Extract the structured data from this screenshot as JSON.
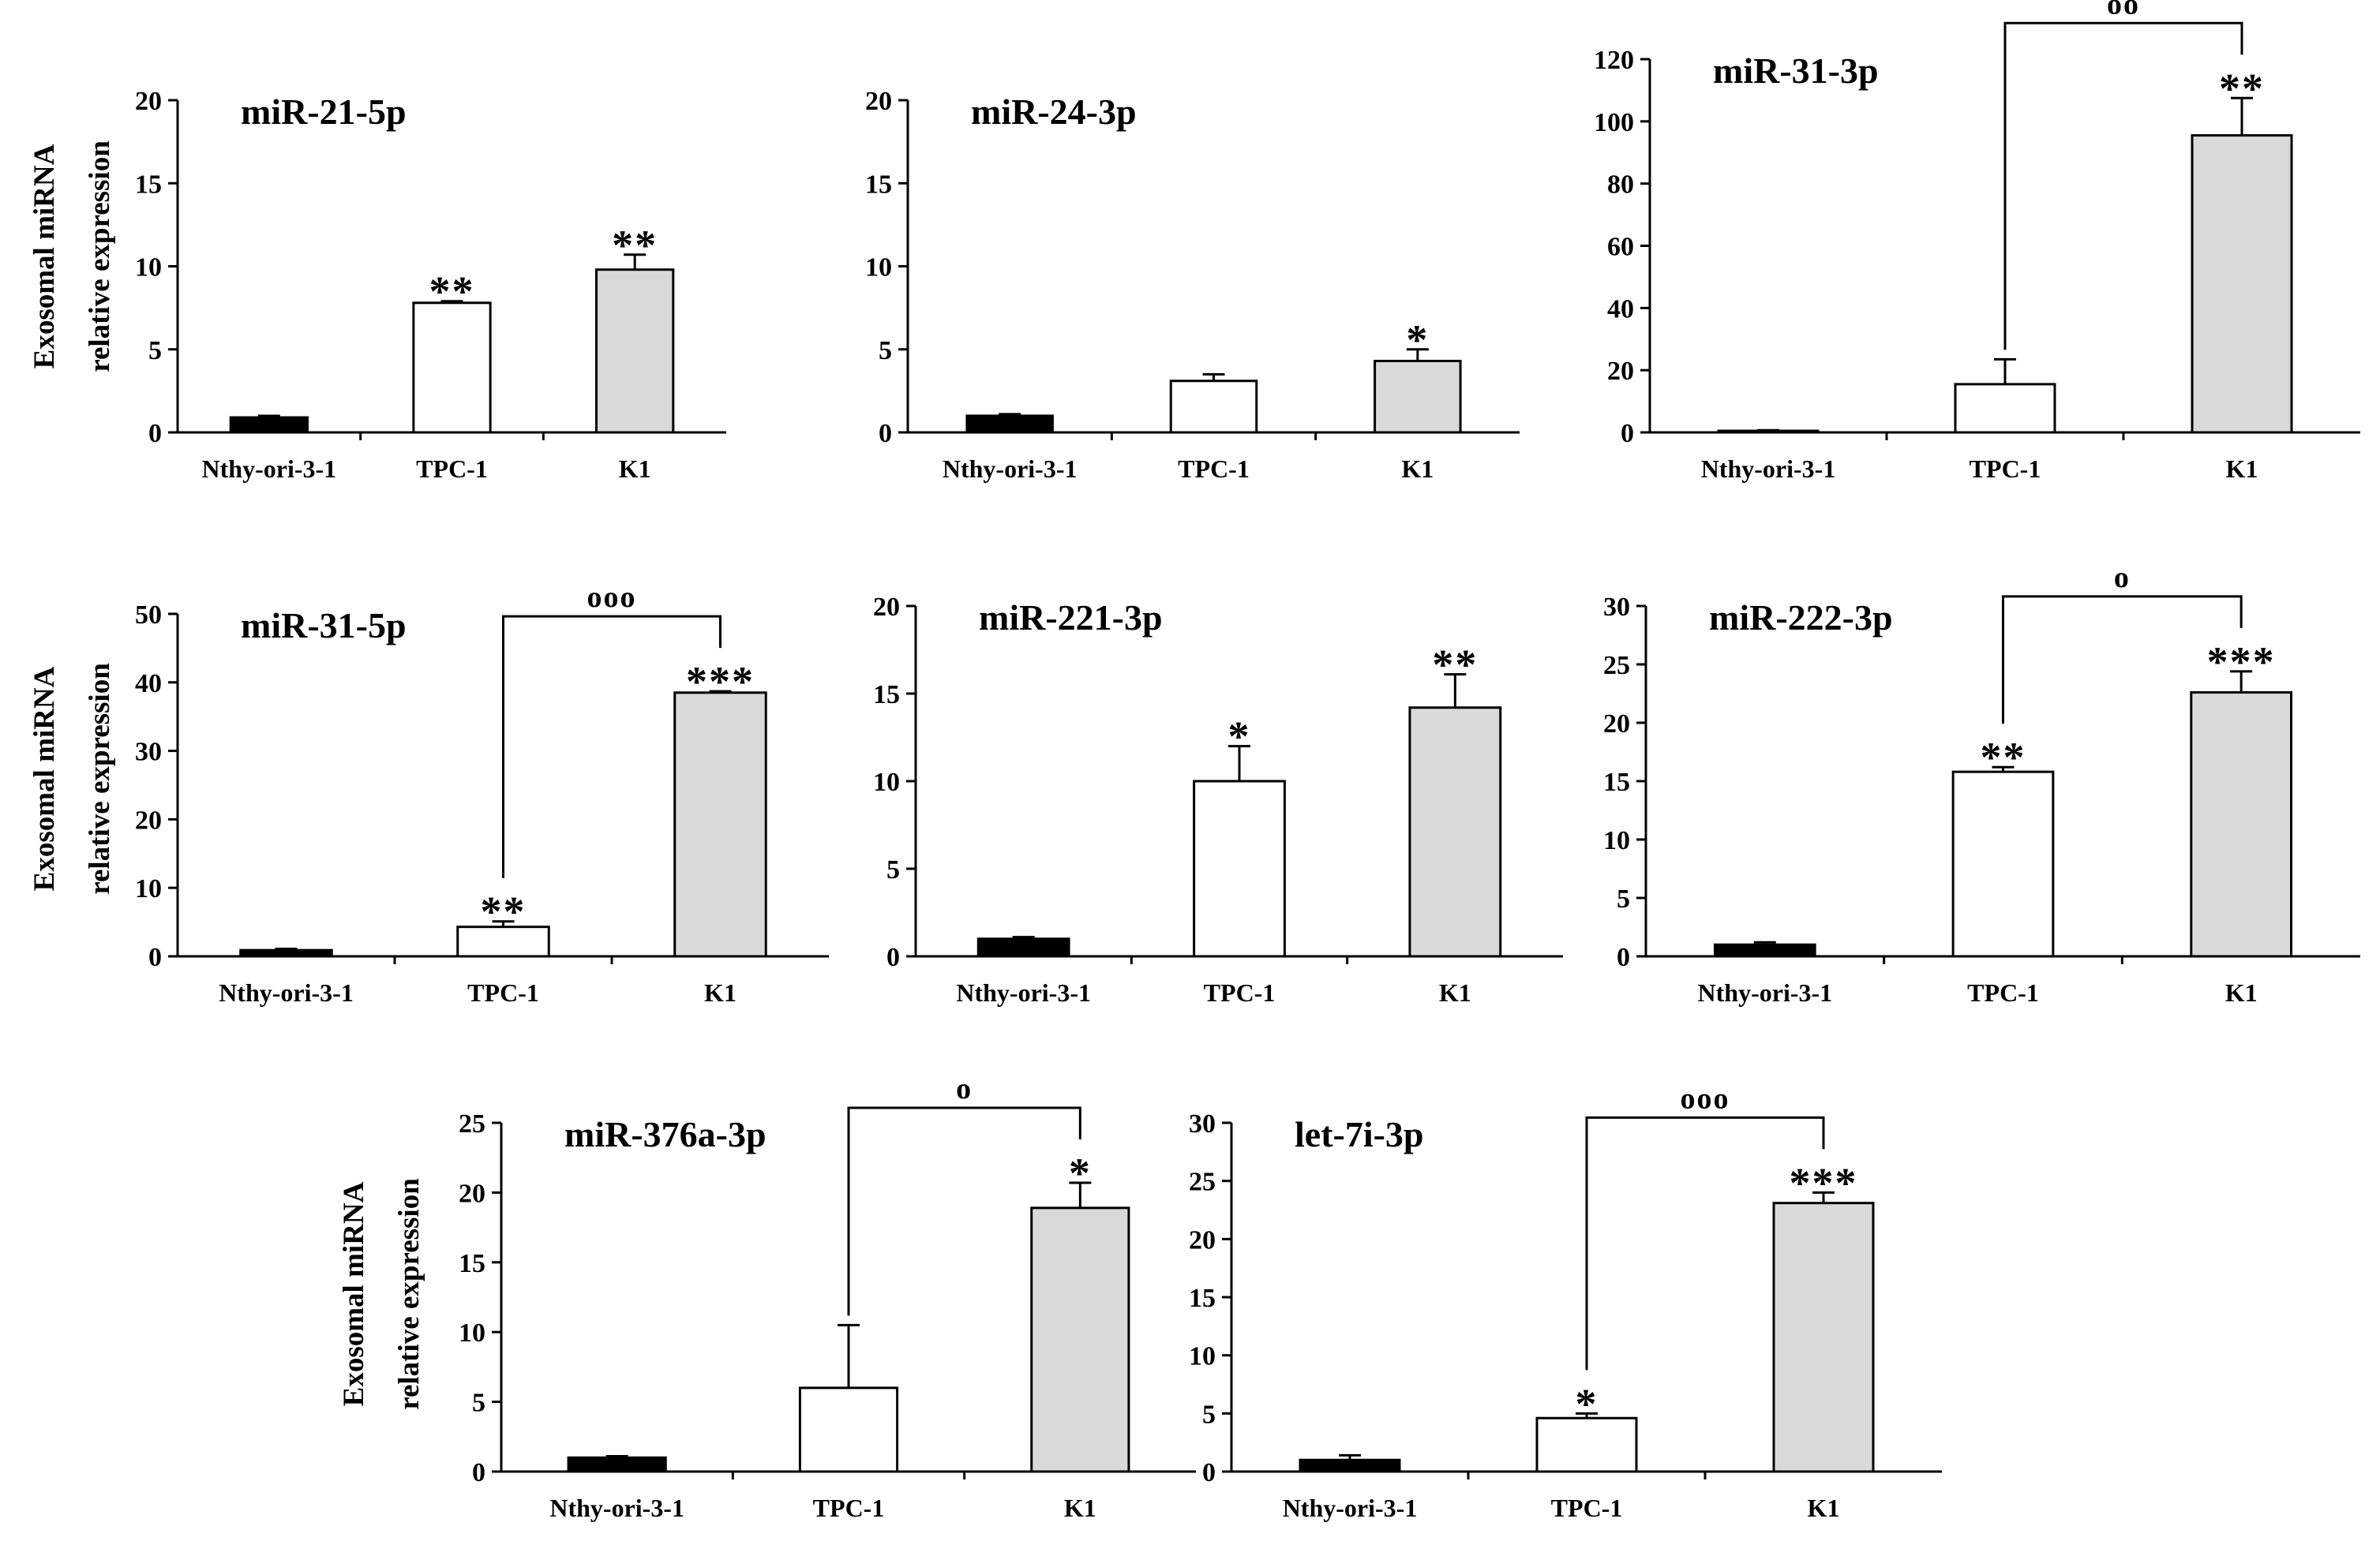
{
  "figure": {
    "y_label_line1": "Exosomal miRNA",
    "y_label_line2": "relative expression"
  },
  "chart_data": [
    {
      "type": "bar",
      "title": "miR-21-5p",
      "ylabel": "Exosomal miRNA relative expression",
      "xlabel": "",
      "categories": [
        "Nthy-ori-3-1",
        "TPC-1",
        "K1"
      ],
      "values": [
        0.9,
        7.8,
        9.8
      ],
      "errors": [
        0.1,
        0.1,
        0.9
      ],
      "ylim": [
        0,
        20
      ],
      "yticks": [
        0,
        5,
        10,
        15,
        20
      ],
      "ytick_labels": [
        "0",
        "5",
        "10",
        "15",
        "20"
      ],
      "bar_colors": [
        "#000000",
        "#ffffff",
        "#d9d9d9"
      ],
      "significance": [
        "",
        "**",
        "**"
      ],
      "bracket": null
    },
    {
      "type": "bar",
      "title": "miR-24-3p",
      "ylabel": "",
      "xlabel": "",
      "categories": [
        "Nthy-ori-3-1",
        "TPC-1",
        "K1"
      ],
      "values": [
        1.0,
        3.1,
        4.3
      ],
      "errors": [
        0.1,
        0.4,
        0.7
      ],
      "ylim": [
        0,
        20
      ],
      "yticks": [
        0,
        5,
        10,
        15,
        20
      ],
      "ytick_labels": [
        "0",
        "5",
        "10",
        "15",
        "20"
      ],
      "bar_colors": [
        "#000000",
        "#ffffff",
        "#d9d9d9"
      ],
      "significance": [
        "",
        "",
        "*"
      ],
      "bracket": null
    },
    {
      "type": "bar",
      "title": "miR-31-3p",
      "ylabel": "",
      "xlabel": "",
      "categories": [
        "Nthy-ori-3-1",
        "TPC-1",
        "K1"
      ],
      "values": [
        0.5,
        15.5,
        95.5
      ],
      "errors": [
        0.2,
        8.0,
        12.0
      ],
      "ylim": [
        0,
        120
      ],
      "yticks": [
        0,
        20,
        40,
        60,
        80,
        100,
        120
      ],
      "ytick_labels": [
        "0",
        "20",
        "40",
        "60",
        "80",
        "100",
        "120"
      ],
      "bar_colors": [
        "#000000",
        "#ffffff",
        "#d9d9d9"
      ],
      "significance": [
        "",
        "",
        "**"
      ],
      "bracket": {
        "from": 1,
        "to": 2,
        "label": "oo"
      }
    },
    {
      "type": "bar",
      "title": "miR-31-5p",
      "ylabel": "Exosomal miRNA relative expression",
      "xlabel": "",
      "categories": [
        "Nthy-ori-3-1",
        "TPC-1",
        "K1"
      ],
      "values": [
        0.9,
        4.3,
        38.5
      ],
      "errors": [
        0.2,
        0.8,
        0.2
      ],
      "ylim": [
        0,
        50
      ],
      "yticks": [
        0,
        10,
        20,
        30,
        40,
        50
      ],
      "ytick_labels": [
        "0",
        "10",
        "20",
        "30",
        "40",
        "50"
      ],
      "bar_colors": [
        "#000000",
        "#ffffff",
        "#d9d9d9"
      ],
      "significance": [
        "",
        "**",
        "***"
      ],
      "bracket": {
        "from": 1,
        "to": 2,
        "label": "ooo"
      }
    },
    {
      "type": "bar",
      "title": "miR-221-3p",
      "ylabel": "",
      "xlabel": "",
      "categories": [
        "Nthy-ori-3-1",
        "TPC-1",
        "K1"
      ],
      "values": [
        1.0,
        10.0,
        14.2
      ],
      "errors": [
        0.1,
        2.0,
        1.9
      ],
      "ylim": [
        0,
        20
      ],
      "yticks": [
        0,
        5,
        10,
        15,
        20
      ],
      "ytick_labels": [
        "0",
        "5",
        "10",
        "15",
        "20"
      ],
      "bar_colors": [
        "#000000",
        "#ffffff",
        "#d9d9d9"
      ],
      "significance": [
        "",
        "*",
        "**"
      ],
      "bracket": null
    },
    {
      "type": "bar",
      "title": "miR-222-3p",
      "ylabel": "",
      "xlabel": "",
      "categories": [
        "Nthy-ori-3-1",
        "TPC-1",
        "K1"
      ],
      "values": [
        1.0,
        15.8,
        22.6
      ],
      "errors": [
        0.2,
        0.4,
        1.8
      ],
      "ylim": [
        0,
        30
      ],
      "yticks": [
        0,
        5,
        10,
        15,
        20,
        25,
        30
      ],
      "ytick_labels": [
        "0",
        "5",
        "10",
        "15",
        "20",
        "25",
        "30"
      ],
      "bar_colors": [
        "#000000",
        "#ffffff",
        "#d9d9d9"
      ],
      "significance": [
        "",
        "**",
        "***"
      ],
      "bracket": {
        "from": 1,
        "to": 2,
        "label": "o"
      }
    },
    {
      "type": "bar",
      "title": "miR-376a-3p",
      "ylabel": "Exosomal miRNA relative expression",
      "xlabel": "",
      "categories": [
        "Nthy-ori-3-1",
        "TPC-1",
        "K1"
      ],
      "values": [
        1.0,
        6.0,
        18.9
      ],
      "errors": [
        0.1,
        4.5,
        1.8
      ],
      "ylim": [
        0,
        25
      ],
      "yticks": [
        0,
        5,
        10,
        15,
        20,
        25
      ],
      "ytick_labels": [
        "0",
        "5",
        "10",
        "15",
        "20",
        "25"
      ],
      "bar_colors": [
        "#000000",
        "#ffffff",
        "#d9d9d9"
      ],
      "significance": [
        "",
        "",
        "*"
      ],
      "bracket": {
        "from": 1,
        "to": 2,
        "label": "o"
      }
    },
    {
      "type": "bar",
      "title": "let-7i-3p",
      "ylabel": "",
      "xlabel": "",
      "categories": [
        "Nthy-ori-3-1",
        "TPC-1",
        "K1"
      ],
      "values": [
        1.0,
        4.6,
        23.1
      ],
      "errors": [
        0.4,
        0.4,
        0.9
      ],
      "ylim": [
        0,
        30
      ],
      "yticks": [
        0,
        5,
        10,
        15,
        20,
        25,
        30
      ],
      "ytick_labels": [
        "0",
        "5",
        "10",
        "15",
        "20",
        "25",
        "30"
      ],
      "bar_colors": [
        "#000000",
        "#ffffff",
        "#d9d9d9"
      ],
      "significance": [
        "",
        "*",
        "***"
      ],
      "bracket": {
        "from": 1,
        "to": 2,
        "label": "ooo"
      }
    }
  ]
}
